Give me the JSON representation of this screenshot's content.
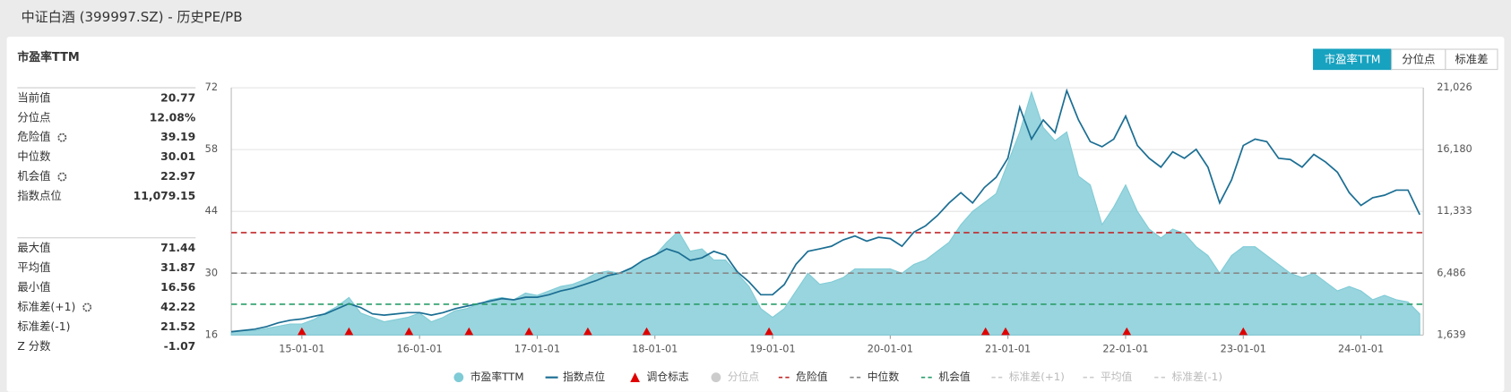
{
  "header": {
    "title": "中证白酒 (399997.SZ) - 历史PE/PB"
  },
  "panel_title": "市盈率TTM",
  "tabs": [
    "市盈率TTM",
    "分位点",
    "标准差"
  ],
  "stats": [
    [
      {
        "label": "当前值",
        "value": "20.77"
      },
      {
        "label": "分位点",
        "value": "12.08%"
      },
      {
        "label": "危险值",
        "value": "39.19",
        "gear": true
      },
      {
        "label": "中位数",
        "value": "30.01"
      },
      {
        "label": "机会值",
        "value": "22.97",
        "gear": true
      },
      {
        "label": "指数点位",
        "value": "11,079.15"
      }
    ],
    [
      {
        "label": "最大值",
        "value": "71.44"
      },
      {
        "label": "平均值",
        "value": "31.87"
      },
      {
        "label": "最小值",
        "value": "16.56"
      },
      {
        "label": "标准差(+1)",
        "value": "42.22",
        "gear": true
      },
      {
        "label": "标准差(-1)",
        "value": "21.52"
      },
      {
        "label": "Z 分数",
        "value": "-1.07"
      }
    ]
  ],
  "chart_data": {
    "type": "area-line",
    "x": [
      14.4,
      14.5,
      14.6,
      14.7,
      14.8,
      14.9,
      15.0,
      15.1,
      15.2,
      15.3,
      15.4,
      15.5,
      15.6,
      15.7,
      15.8,
      15.9,
      16.0,
      16.1,
      16.2,
      16.3,
      16.4,
      16.5,
      16.6,
      16.7,
      16.8,
      16.9,
      17.0,
      17.1,
      17.2,
      17.3,
      17.4,
      17.5,
      17.6,
      17.7,
      17.8,
      17.9,
      18.0,
      18.1,
      18.2,
      18.3,
      18.4,
      18.5,
      18.6,
      18.7,
      18.8,
      18.9,
      19.0,
      19.1,
      19.2,
      19.3,
      19.4,
      19.5,
      19.6,
      19.7,
      19.8,
      19.9,
      20.0,
      20.1,
      20.2,
      20.3,
      20.4,
      20.5,
      20.6,
      20.7,
      20.8,
      20.9,
      21.0,
      21.1,
      21.2,
      21.3,
      21.4,
      21.5,
      21.6,
      21.7,
      21.8,
      21.9,
      22.0,
      22.1,
      22.2,
      22.3,
      22.4,
      22.5,
      22.6,
      22.7,
      22.8,
      22.9,
      23.0,
      23.1,
      23.2,
      23.3,
      23.4,
      23.5,
      23.6,
      23.7,
      23.8,
      23.9,
      24.0,
      24.1,
      24.2,
      24.3,
      24.4,
      24.5
    ],
    "series": [
      {
        "name": "市盈率TTM",
        "kind": "area",
        "color": "#7fcbd6",
        "values": [
          16.56,
          17,
          17,
          17.5,
          18,
          18.5,
          18.5,
          19.5,
          21,
          22.5,
          24.5,
          21,
          20,
          19,
          19.5,
          20,
          21,
          19,
          20,
          21.5,
          22,
          23,
          24,
          24.5,
          24,
          25.5,
          25,
          26,
          27,
          27.5,
          28.5,
          30,
          30.5,
          30,
          31,
          33,
          34,
          37,
          39.5,
          35,
          35.5,
          33,
          33,
          30,
          27,
          22,
          20,
          22,
          26,
          30,
          27.5,
          28,
          29,
          31,
          31,
          31,
          31,
          30,
          32,
          33,
          35,
          37,
          41,
          44,
          46,
          48,
          55,
          62,
          71,
          63,
          60,
          62,
          52,
          50,
          41,
          45,
          50,
          44,
          40,
          38,
          40,
          39,
          36,
          34,
          30,
          34,
          36,
          36,
          34,
          32,
          30,
          29,
          30,
          28,
          26,
          27,
          26,
          24,
          25,
          24,
          23.5,
          20.8
        ]
      },
      {
        "name": "指数点位",
        "kind": "line",
        "axis": "y2",
        "color": "#1b6e93",
        "values": [
          1900,
          2000,
          2100,
          2300,
          2600,
          2800,
          2900,
          3100,
          3300,
          3700,
          4100,
          3800,
          3300,
          3200,
          3300,
          3400,
          3400,
          3200,
          3400,
          3700,
          3900,
          4100,
          4300,
          4500,
          4400,
          4600,
          4600,
          4800,
          5100,
          5300,
          5600,
          5900,
          6300,
          6500,
          6900,
          7500,
          7900,
          8400,
          8100,
          7500,
          7700,
          8200,
          7900,
          6600,
          5800,
          4800,
          4800,
          5600,
          7200,
          8200,
          8400,
          8600,
          9100,
          9400,
          9000,
          9300,
          9200,
          8600,
          9700,
          10200,
          11000,
          12000,
          12800,
          12000,
          13200,
          14000,
          15500,
          19500,
          17000,
          18500,
          17500,
          20800,
          18500,
          16800,
          16400,
          17000,
          18800,
          16500,
          15500,
          14800,
          16000,
          15500,
          16200,
          14800,
          12000,
          13800,
          16500,
          17000,
          16800,
          15500,
          15400,
          14800,
          15800,
          15200,
          14400,
          12800,
          11800,
          12400,
          12600,
          13000,
          13000,
          11079.15
        ]
      }
    ],
    "markers": {
      "name": "调仓标志",
      "color": "#e00000",
      "x": [
        15.0,
        15.4,
        15.91,
        16.42,
        16.93,
        17.43,
        17.93,
        18.97,
        20.81,
        20.98,
        22.01,
        23.0
      ]
    },
    "reference_lines": [
      {
        "name": "危险值",
        "value": 39.19,
        "color": "#c0292b"
      },
      {
        "name": "中位数",
        "value": 30.01,
        "color": "#888888"
      },
      {
        "name": "机会值",
        "value": 22.97,
        "color": "#2a9d6a"
      }
    ],
    "legend": [
      {
        "name": "市盈率TTM",
        "symbol": "circle",
        "color": "#7fcbd6",
        "active": true
      },
      {
        "name": "指数点位",
        "symbol": "line",
        "color": "#1b6e93",
        "active": true
      },
      {
        "name": "调仓标志",
        "symbol": "triangle",
        "color": "#e00000",
        "active": true
      },
      {
        "name": "分位点",
        "symbol": "circle",
        "color": "#cccccc",
        "active": false
      },
      {
        "name": "危险值",
        "symbol": "dash",
        "color": "#c0292b",
        "active": true
      },
      {
        "name": "中位数",
        "symbol": "dash",
        "color": "#888888",
        "active": true
      },
      {
        "name": "机会值",
        "symbol": "dash",
        "color": "#2a9d6a",
        "active": true
      },
      {
        "name": "标准差(+1)",
        "symbol": "dash",
        "color": "#cccccc",
        "active": false
      },
      {
        "name": "平均值",
        "symbol": "dash",
        "color": "#cccccc",
        "active": false
      },
      {
        "name": "标准差(-1)",
        "symbol": "dash",
        "color": "#cccccc",
        "active": false
      }
    ],
    "xlim": [
      14.4,
      24.53
    ],
    "xticks": [
      {
        "value": 15,
        "label": "15-01-01"
      },
      {
        "value": 16,
        "label": "16-01-01"
      },
      {
        "value": 17,
        "label": "17-01-01"
      },
      {
        "value": 18,
        "label": "18-01-01"
      },
      {
        "value": 19,
        "label": "19-01-01"
      },
      {
        "value": 20,
        "label": "20-01-01"
      },
      {
        "value": 21,
        "label": "21-01-01"
      },
      {
        "value": 22,
        "label": "22-01-01"
      },
      {
        "value": 23,
        "label": "23-01-01"
      },
      {
        "value": 24,
        "label": "24-01-01"
      }
    ],
    "ylim": [
      16,
      72
    ],
    "yticks": [
      16,
      30,
      44,
      58,
      72
    ],
    "y2lim": [
      1639,
      21026
    ],
    "y2ticks": [
      {
        "value": 1639,
        "label": "1,639"
      },
      {
        "value": 6486,
        "label": "6,486"
      },
      {
        "value": 11333,
        "label": "11,333"
      },
      {
        "value": 16180,
        "label": "16,180"
      },
      {
        "value": 21026,
        "label": "21,026"
      }
    ],
    "grid": true
  }
}
